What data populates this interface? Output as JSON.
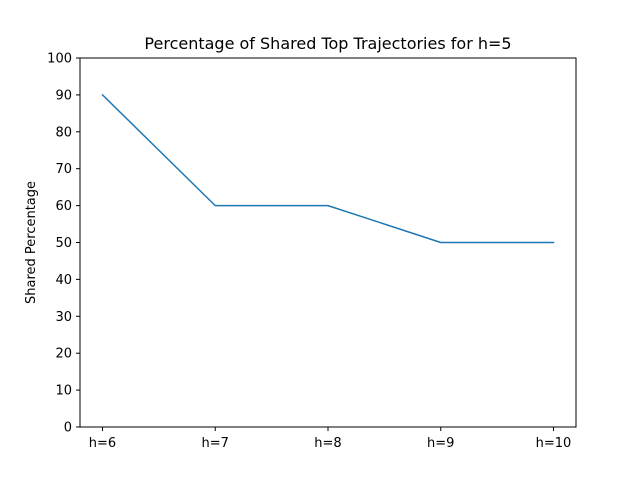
{
  "chart_data": {
    "type": "line",
    "title": "Percentage of Shared Top Trajectories for h=5",
    "xlabel": "",
    "ylabel": "Shared Percentage",
    "categories": [
      "h=6",
      "h=7",
      "h=8",
      "h=9",
      "h=10"
    ],
    "series": [
      {
        "values": [
          90,
          60,
          60,
          50,
          50
        ],
        "color": "#1f77b4"
      }
    ],
    "ylim": [
      0,
      100
    ],
    "yticks": [
      0,
      10,
      20,
      30,
      40,
      50,
      60,
      70,
      80,
      90,
      100
    ],
    "grid": false,
    "legend": "none"
  }
}
